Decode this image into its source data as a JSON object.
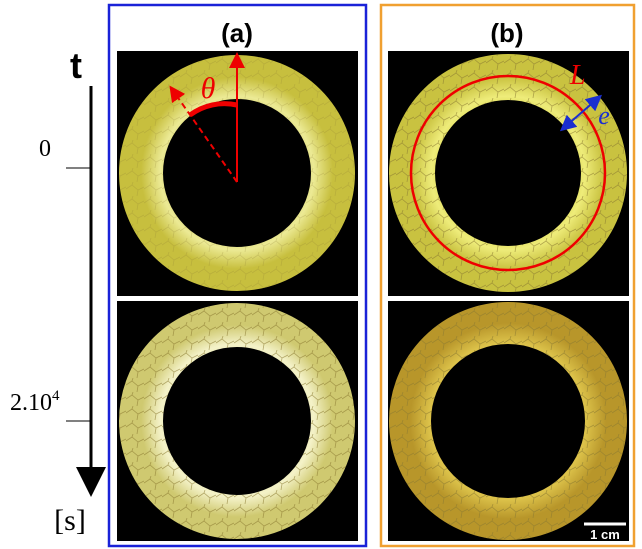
{
  "time_axis": {
    "label": "t",
    "ticks": [
      {
        "base": "0"
      },
      {
        "base": "2.10",
        "exponent": "4"
      }
    ],
    "unit": "[s]"
  },
  "panels": [
    {
      "label": "(a)",
      "annotations": {
        "angle": "θ"
      }
    },
    {
      "label": "(b)",
      "annotations": {
        "length": "L",
        "width": "e",
        "scale_bar": "1 cm"
      }
    }
  ]
}
